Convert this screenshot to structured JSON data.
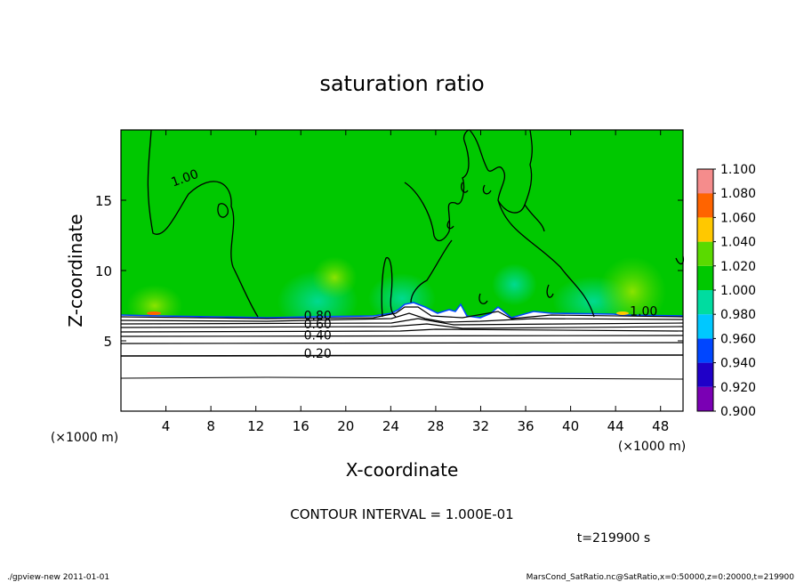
{
  "chart_data": {
    "type": "heatmap",
    "title": "saturation ratio",
    "xlabel": "X-coordinate",
    "ylabel": "Z-coordinate",
    "x_unit": "(×1000 m)",
    "y_unit": "(×1000 m)",
    "xlim": [
      0,
      50
    ],
    "ylim": [
      0,
      20
    ],
    "x_ticks": [
      4,
      8,
      12,
      16,
      20,
      24,
      28,
      32,
      36,
      40,
      44,
      48
    ],
    "y_ticks": [
      5,
      10,
      15
    ],
    "colorbar": {
      "levels": [
        0.9,
        0.92,
        0.94,
        0.96,
        0.98,
        1.0,
        1.02,
        1.04,
        1.06,
        1.08,
        1.1
      ],
      "labels": [
        "0.900",
        "0.920",
        "0.940",
        "0.960",
        "0.980",
        "1.000",
        "1.020",
        "1.040",
        "1.060",
        "1.080",
        "1.100"
      ],
      "colors": [
        "#7a00b4",
        "#1f00c8",
        "#0046ff",
        "#00c8ff",
        "#00dca0",
        "#00c800",
        "#5ada00",
        "#ffc800",
        "#ff6400",
        "#f01e1e",
        "#f58c8c"
      ]
    },
    "field_description_values": {
      "upper_region_value": 1.0,
      "surface_layer_top_z": 6.8
    },
    "contour_labels": [
      {
        "text": "1.00",
        "x": 5.8,
        "z": 16.3
      },
      {
        "text": "1.00",
        "x": 46.5,
        "z": 6.8
      },
      {
        "text": "0.80",
        "x": 17.5,
        "z": 6.5
      },
      {
        "text": "0.60",
        "x": 17.5,
        "z": 5.9
      },
      {
        "text": "0.40",
        "x": 17.5,
        "z": 5.1
      },
      {
        "text": "0.20",
        "x": 17.5,
        "z": 3.8
      }
    ],
    "contour_interval_text": "CONTOUR INTERVAL = 1.000E-01",
    "time_text": "t=219900 s"
  },
  "footer": {
    "left": "./gpview-new   2011-01-01",
    "right": "MarsCond_SatRatio.nc@SatRatio,x=0:50000,z=0:20000,t=219900"
  }
}
